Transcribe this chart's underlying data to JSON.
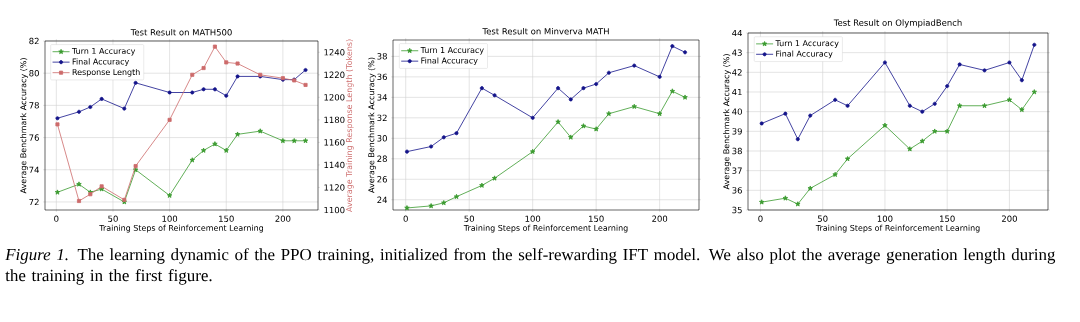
{
  "chart_data": [
    {
      "type": "line",
      "title": "Test Result on MATH500",
      "xlabel": "Training Steps of Reinforcement Learning",
      "ylabel": "Average Benchmark Accuracy (%)",
      "y2label": "Average Training Response Length (Tokens)",
      "x": [
        1,
        20,
        30,
        40,
        60,
        70,
        100,
        120,
        130,
        140,
        150,
        160,
        180,
        200,
        210,
        220
      ],
      "series": [
        {
          "name": "Turn 1 Accuracy",
          "color": "#3a9a2e",
          "marker": "star",
          "values": [
            72.6,
            73.1,
            72.6,
            72.8,
            72.0,
            74.0,
            72.4,
            74.6,
            75.2,
            75.6,
            75.2,
            76.2,
            76.4,
            75.8,
            75.8,
            75.8
          ]
        },
        {
          "name": "Final Accuracy",
          "color": "#14148a",
          "marker": "circle",
          "values": [
            77.2,
            77.6,
            77.9,
            78.4,
            77.8,
            79.4,
            78.8,
            78.8,
            79.0,
            79.0,
            78.6,
            79.8,
            79.8,
            79.6,
            79.6,
            80.2
          ]
        },
        {
          "name": "Response Length",
          "color": "#cd6b6b",
          "marker": "square",
          "axis": "y2",
          "values": [
            1176,
            1108,
            1114,
            1121,
            1109,
            1139,
            1180,
            1220,
            1226,
            1245,
            1231,
            1230,
            1220,
            1217,
            1215,
            1211
          ]
        }
      ],
      "xlim": [
        -10,
        231
      ],
      "xticks": [
        0,
        50,
        100,
        150,
        200
      ],
      "ylim": [
        71.5,
        82
      ],
      "yticks": [
        72,
        74,
        76,
        78,
        80,
        82
      ],
      "y2lim": [
        1100,
        1250
      ],
      "y2ticks": [
        1100,
        1120,
        1140,
        1160,
        1180,
        1200,
        1220,
        1240
      ],
      "grid": true,
      "legend": "top left",
      "line_style": "solid",
      "annotations": [
        "*Figure 1.* The learning dynamic of the PPO training, initialized from the self-rewarding IFT model. We also plot the average generation length during the training in the first figure."
      ]
    },
    {
      "type": "line",
      "title": "Test Result on Minverva MATH",
      "xlabel": "Training Steps of Reinforcement Learning",
      "ylabel": "Average Benchmark Accuracy (%)",
      "x": [
        1,
        20,
        30,
        40,
        60,
        70,
        100,
        120,
        130,
        140,
        150,
        160,
        180,
        200,
        210,
        220
      ],
      "series": [
        {
          "name": "Turn 1 Accuracy",
          "color": "#3a9a2e",
          "marker": "star",
          "values": [
            23.2,
            23.4,
            23.7,
            24.3,
            25.4,
            26.1,
            28.7,
            31.6,
            30.1,
            31.2,
            30.9,
            32.4,
            33.1,
            32.4,
            34.6,
            34.0
          ]
        },
        {
          "name": "Final Accuracy",
          "color": "#14148a",
          "marker": "circle",
          "values": [
            28.7,
            29.2,
            30.1,
            30.5,
            34.9,
            34.2,
            32.0,
            34.9,
            33.8,
            34.9,
            35.3,
            36.4,
            37.1,
            36.0,
            39.0,
            38.4
          ]
        }
      ],
      "xlim": [
        -10,
        231
      ],
      "xticks": [
        0,
        50,
        100,
        150,
        200
      ],
      "ylim": [
        23.0,
        39.6
      ],
      "yticks": [
        24,
        26,
        28,
        30,
        32,
        34,
        36,
        38
      ],
      "grid": true,
      "legend": "top left",
      "line_style": "solid"
    },
    {
      "type": "line",
      "title": "Test Result on OlympiadBench",
      "xlabel": "Training Steps of Reinforcement Learning",
      "ylabel": "Average Benchmark Accuracy (%)",
      "x": [
        1,
        20,
        30,
        40,
        60,
        70,
        100,
        120,
        130,
        140,
        150,
        160,
        180,
        200,
        210,
        220
      ],
      "series": [
        {
          "name": "Turn 1 Accuracy",
          "color": "#3a9a2e",
          "marker": "star",
          "values": [
            35.4,
            35.6,
            35.3,
            36.1,
            36.8,
            37.6,
            39.3,
            38.1,
            38.5,
            39.0,
            39.0,
            40.3,
            40.3,
            40.6,
            40.1,
            41.0
          ]
        },
        {
          "name": "Final Accuracy",
          "color": "#14148a",
          "marker": "circle",
          "values": [
            39.4,
            39.9,
            38.6,
            39.8,
            40.6,
            40.3,
            42.5,
            40.3,
            40.0,
            40.4,
            41.3,
            42.4,
            42.1,
            42.5,
            41.6,
            43.4
          ]
        }
      ],
      "xlim": [
        -10,
        231
      ],
      "xticks": [
        0,
        50,
        100,
        150,
        200
      ],
      "ylim": [
        35,
        44
      ],
      "yticks": [
        35,
        36,
        37,
        38,
        39,
        40,
        41,
        42,
        43,
        44
      ],
      "grid": true,
      "legend": "top left",
      "line_style": "solid"
    }
  ]
}
